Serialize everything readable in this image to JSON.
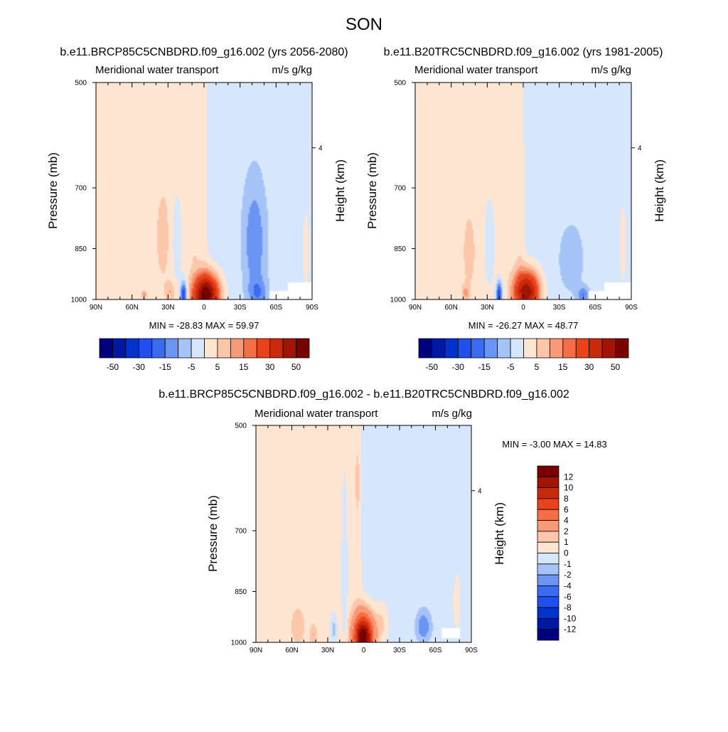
{
  "figure": {
    "title": "SON",
    "diff_title": "b.e11.BRCP85C5CNBDRD.f09_g16.002 - b.e11.B20TRC5CNBDRD.f09_g16.002"
  },
  "chart_data": [
    {
      "type": "heatmap",
      "title": "b.e11.BRCP85C5CNBDRD.f09_g16.002 (yrs 2056-2080)",
      "left_label": "Meridional water transport",
      "right_label": "m/s g/kg",
      "ylabel": "Pressure (mb)",
      "ylabel_right": "Height (km)",
      "yticks": [
        "500",
        "700",
        "850",
        "1000"
      ],
      "ytick_values": [
        500,
        700,
        850,
        1000
      ],
      "right_ticks": [
        "4"
      ],
      "right_tick_pressure": [
        616
      ],
      "xticks": [
        "90N",
        "60N",
        "30N",
        "0",
        "30S",
        "60S",
        "90S"
      ],
      "xlim": [
        90,
        -90
      ],
      "ylim": [
        1000,
        500
      ],
      "min": -28.83,
      "max": 59.97,
      "stats_text": "MIN = -28.83  MAX =  59.97",
      "colorbar_levels": [
        -50,
        -40,
        -30,
        -20,
        -15,
        -10,
        -5,
        0,
        5,
        10,
        15,
        20,
        30,
        40,
        50
      ],
      "colorbar_labels": [
        "-50",
        "-30",
        "-15",
        "-5",
        "5",
        "15",
        "30",
        "50"
      ],
      "colors": [
        "#00007f",
        "#0019a5",
        "#0033cc",
        "#1f4fee",
        "#3a6cf2",
        "#6a95f5",
        "#a6c3f8",
        "#d6e6fd",
        "#fde5d2",
        "#fcc6a8",
        "#f89a78",
        "#f66e45",
        "#ea431a",
        "#c82a0c",
        "#a01405",
        "#7a0000"
      ],
      "features": [
        {
          "lat": 34,
          "p": 820,
          "slat": 7,
          "sp": 140,
          "amp": 5
        },
        {
          "lat": 28,
          "p": 975,
          "slat": 4,
          "sp": 30,
          "amp": 8
        },
        {
          "lat": 50,
          "p": 985,
          "slat": 2,
          "sp": 12,
          "amp": 12
        },
        {
          "lat": 17,
          "p": 985,
          "slat": 2.5,
          "sp": 40,
          "amp": -28
        },
        {
          "lat": -2,
          "p": 985,
          "slat": 10,
          "sp": 60,
          "amp": 58
        },
        {
          "lat": 8,
          "p": 760,
          "slat": 4,
          "sp": 250,
          "amp": 3
        },
        {
          "lat": 23,
          "p": 830,
          "slat": 5,
          "sp": 150,
          "amp": -4
        },
        {
          "lat": -42,
          "p": 830,
          "slat": 10,
          "sp": 160,
          "amp": -12
        },
        {
          "lat": -45,
          "p": 980,
          "slat": 8,
          "sp": 45,
          "amp": -10
        },
        {
          "lat": -85,
          "p": 860,
          "slat": 3,
          "sp": 120,
          "amp": 4
        }
      ],
      "background": {
        "north": 2,
        "south": -2,
        "edge_lat": -2,
        "edge_slope": 0.04
      },
      "missing": [
        {
          "lat0": -55,
          "lat1": -90,
          "p0": 975,
          "p1": 1000
        },
        {
          "lat0": -70,
          "lat1": -90,
          "p0": 945,
          "p1": 1000
        }
      ]
    },
    {
      "type": "heatmap",
      "title": "b.e11.B20TRC5CNBDRD.f09_g16.002 (yrs 1981-2005)",
      "left_label": "Meridional water transport",
      "right_label": "m/s g/kg",
      "ylabel": "Pressure (mb)",
      "ylabel_right": "Height (km)",
      "yticks": [
        "500",
        "700",
        "850",
        "1000"
      ],
      "ytick_values": [
        500,
        700,
        850,
        1000
      ],
      "right_ticks": [
        "4"
      ],
      "right_tick_pressure": [
        616
      ],
      "xticks": [
        "90N",
        "60N",
        "30N",
        "0",
        "30S",
        "60S",
        "90S"
      ],
      "xlim": [
        90,
        -90
      ],
      "ylim": [
        1000,
        500
      ],
      "min": -26.27,
      "max": 48.77,
      "stats_text": "MIN = -26.27  MAX =  48.77",
      "colorbar_levels": [
        -50,
        -40,
        -30,
        -20,
        -15,
        -10,
        -5,
        0,
        5,
        10,
        15,
        20,
        30,
        40,
        50
      ],
      "colorbar_labels": [
        "-50",
        "-30",
        "-15",
        "-5",
        "5",
        "15",
        "30",
        "50"
      ],
      "colors": [
        "#00007f",
        "#0019a5",
        "#0033cc",
        "#1f4fee",
        "#3a6cf2",
        "#6a95f5",
        "#a6c3f8",
        "#d6e6fd",
        "#fde5d2",
        "#fcc6a8",
        "#f89a78",
        "#f66e45",
        "#ea431a",
        "#c82a0c",
        "#a01405",
        "#7a0000"
      ],
      "features": [
        {
          "lat": 45,
          "p": 860,
          "slat": 6,
          "sp": 120,
          "amp": 5
        },
        {
          "lat": 48,
          "p": 980,
          "slat": 3,
          "sp": 25,
          "amp": 9
        },
        {
          "lat": 20,
          "p": 985,
          "slat": 2.5,
          "sp": 40,
          "amp": -26
        },
        {
          "lat": -3,
          "p": 975,
          "slat": 10,
          "sp": 60,
          "amp": 48
        },
        {
          "lat": 2,
          "p": 760,
          "slat": 4,
          "sp": 250,
          "amp": 3
        },
        {
          "lat": 28,
          "p": 840,
          "slat": 5,
          "sp": 140,
          "amp": -4
        },
        {
          "lat": -40,
          "p": 880,
          "slat": 12,
          "sp": 110,
          "amp": -6
        },
        {
          "lat": -50,
          "p": 985,
          "slat": 5,
          "sp": 25,
          "amp": -12
        },
        {
          "lat": -83,
          "p": 840,
          "slat": 3,
          "sp": 120,
          "amp": 4
        }
      ],
      "background": {
        "north": 2,
        "south": -2,
        "edge_lat": 2,
        "edge_slope": 0.04
      },
      "missing": [
        {
          "lat0": -55,
          "lat1": -90,
          "p0": 975,
          "p1": 1000
        },
        {
          "lat0": -68,
          "lat1": -90,
          "p0": 945,
          "p1": 1000
        }
      ]
    },
    {
      "type": "heatmap",
      "left_label": "Meridional water transport",
      "right_label": "m/s g/kg",
      "ylabel": "Pressure (mb)",
      "ylabel_right": "Height (km)",
      "yticks": [
        "500",
        "700",
        "850",
        "1000"
      ],
      "ytick_values": [
        500,
        700,
        850,
        1000
      ],
      "right_ticks": [
        "4"
      ],
      "right_tick_pressure": [
        616
      ],
      "xticks": [
        "90N",
        "60N",
        "30N",
        "0",
        "30S",
        "60S",
        "90S"
      ],
      "xlim": [
        90,
        -90
      ],
      "ylim": [
        1000,
        500
      ],
      "min": -3.0,
      "max": 14.83,
      "stats_text": "MIN =  -3.00  MAX =  14.83",
      "colorbar_levels": [
        -12,
        -10,
        -8,
        -6,
        -4,
        -2,
        -1,
        0,
        1,
        2,
        4,
        6,
        8,
        10,
        12
      ],
      "colorbar_labels": [
        "12",
        "10",
        "8",
        "6",
        "4",
        "2",
        "1",
        "0",
        "-1",
        "-2",
        "-4",
        "-6",
        "-8",
        "-10",
        "-12"
      ],
      "colors": [
        "#00007f",
        "#0019a5",
        "#0033cc",
        "#1f4fee",
        "#3a6cf2",
        "#6a95f5",
        "#a6c3f8",
        "#d6e6fd",
        "#fde5d2",
        "#fcc6a8",
        "#f89a78",
        "#f66e45",
        "#ea431a",
        "#c82a0c",
        "#a01405",
        "#7a0000"
      ],
      "features": [
        {
          "lat": 55,
          "p": 950,
          "slat": 5,
          "sp": 50,
          "amp": 1.5
        },
        {
          "lat": 42,
          "p": 975,
          "slat": 3,
          "sp": 30,
          "amp": 1.5
        },
        {
          "lat": 25,
          "p": 960,
          "slat": 3,
          "sp": 50,
          "amp": -1.8
        },
        {
          "lat": 16,
          "p": 800,
          "slat": 2.5,
          "sp": 220,
          "amp": -1.4
        },
        {
          "lat": 0,
          "p": 985,
          "slat": 8,
          "sp": 70,
          "amp": 14
        },
        {
          "lat": 5,
          "p": 600,
          "slat": 2,
          "sp": 60,
          "amp": 1.3
        },
        {
          "lat": -15,
          "p": 940,
          "slat": 6,
          "sp": 60,
          "amp": 1.5
        },
        {
          "lat": -50,
          "p": 950,
          "slat": 6,
          "sp": 45,
          "amp": -2.5
        },
        {
          "lat": -78,
          "p": 880,
          "slat": 3,
          "sp": 80,
          "amp": 1.3
        }
      ],
      "background": {
        "north": 0.5,
        "south": -0.5,
        "edge_lat": 3,
        "edge_slope": 0.08
      },
      "missing": [
        {
          "lat0": -65,
          "lat1": -80,
          "p0": 955,
          "p1": 985
        }
      ]
    }
  ]
}
